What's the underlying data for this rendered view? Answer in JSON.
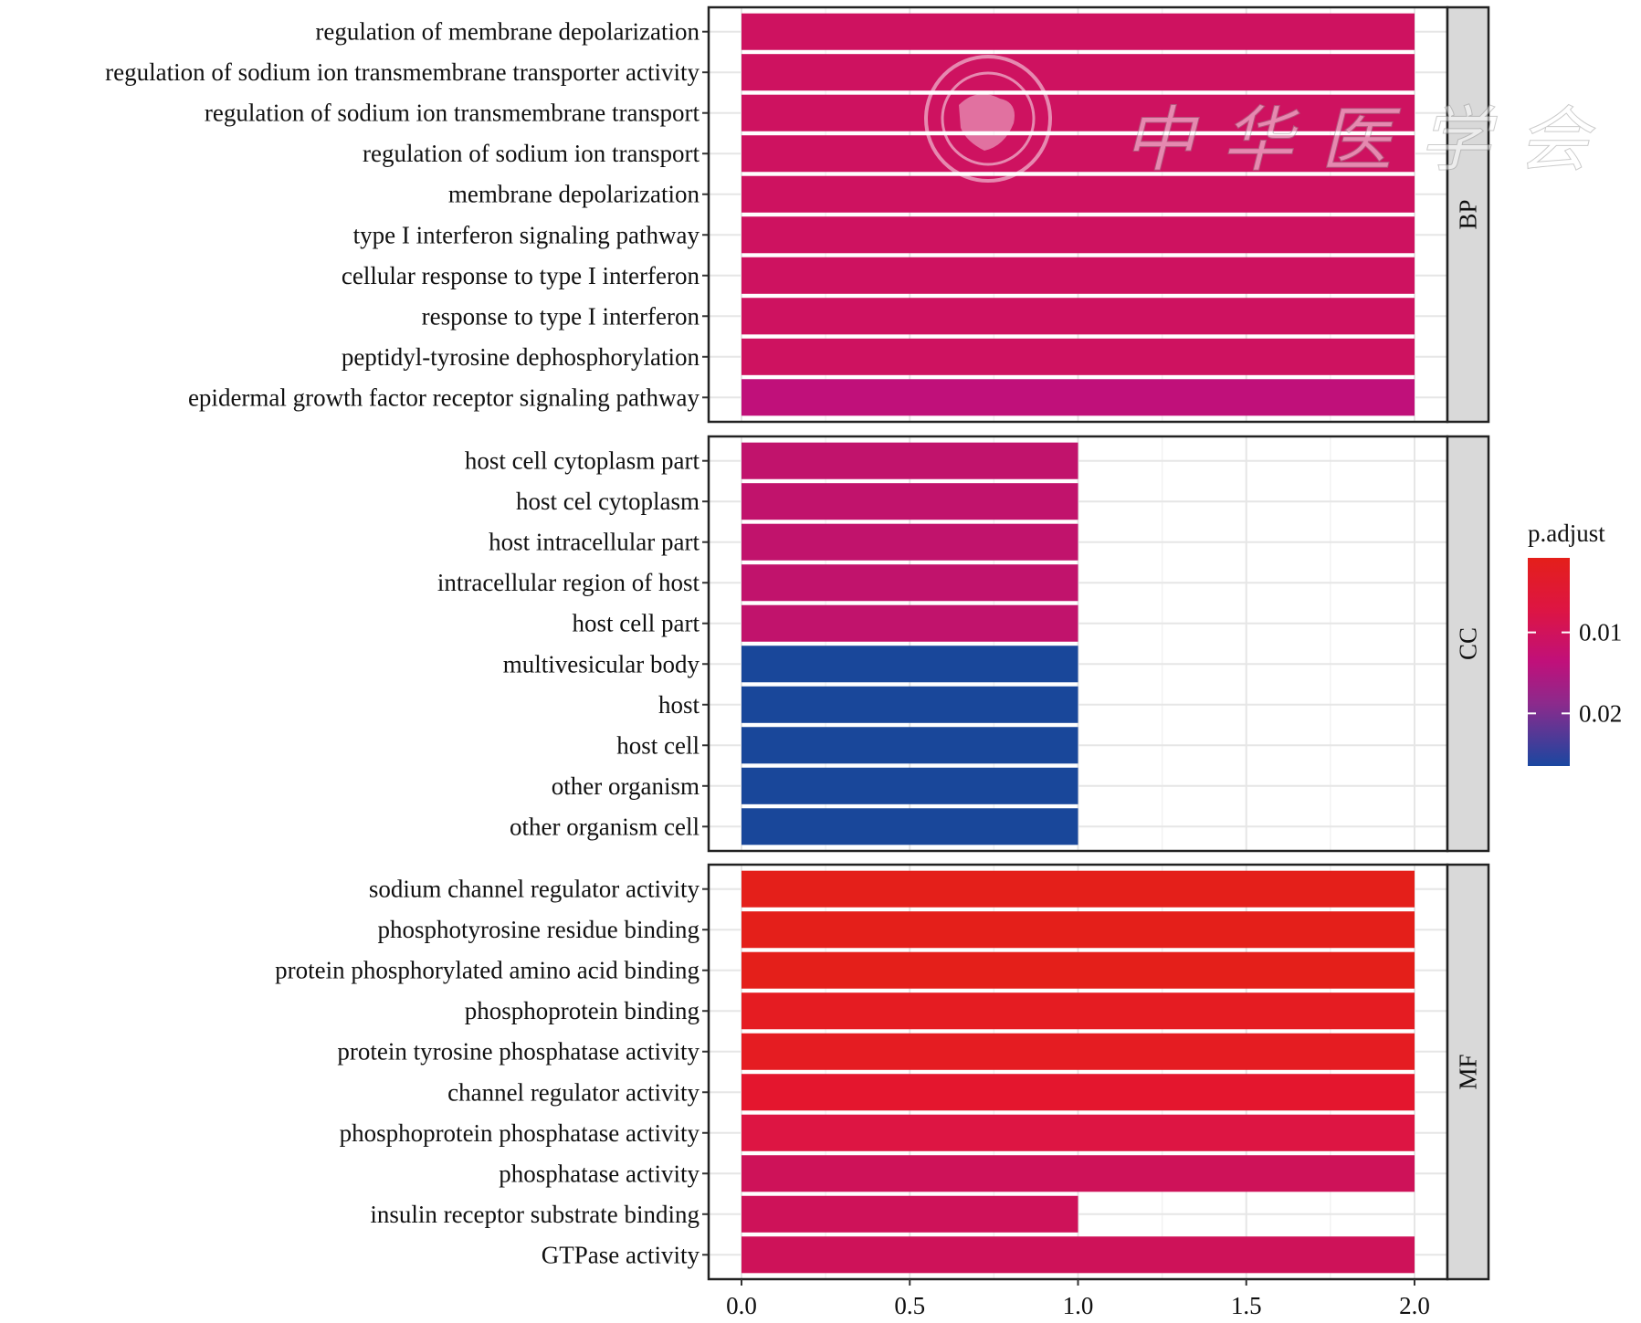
{
  "chart_data": {
    "type": "bar",
    "orientation": "horizontal",
    "facet_variable": "ONTOLOGY",
    "xlabel": "",
    "ylabel": "",
    "xlim": [
      0,
      2.1
    ],
    "x_ticks": [
      0.0,
      0.5,
      1.0,
      1.5,
      2.0
    ],
    "x_tick_labels": [
      "0.0",
      "0.5",
      "1.0",
      "1.5",
      "2.0"
    ],
    "grid": true,
    "legend": {
      "title": "p.adjust",
      "placement": "right",
      "type": "colorbar",
      "range": [
        0.0008,
        0.0265
      ],
      "ticks": [
        0.01,
        0.02
      ],
      "tick_labels": [
        "0.01",
        "0.02"
      ],
      "low_color": "#E41A1C",
      "mid_color": "#C0107A",
      "high_color": "#1A47A0"
    },
    "panels": [
      {
        "name": "BP",
        "strip_label": "BP",
        "categories": [
          "regulation of membrane depolarization",
          "regulation of sodium ion transmembrane transporter activity",
          "regulation of sodium ion transmembrane transport",
          "regulation of sodium ion transport",
          "membrane depolarization",
          "type I interferon signaling pathway",
          "cellular response to type I interferon",
          "response to type I interferon",
          "peptidyl-tyrosine dephosphorylation",
          "epidermal growth factor receptor signaling pathway"
        ],
        "values": [
          2,
          2,
          2,
          2,
          2,
          2,
          2,
          2,
          2,
          2
        ],
        "p_adjust": [
          0.0105,
          0.0105,
          0.0105,
          0.0105,
          0.0105,
          0.0105,
          0.0105,
          0.0105,
          0.0105,
          0.013
        ],
        "colors": [
          "#CE1260",
          "#CE1260",
          "#CE1260",
          "#CE1260",
          "#CE1260",
          "#CE1260",
          "#CE1260",
          "#CE1260",
          "#CE1260",
          "#C0107A"
        ]
      },
      {
        "name": "CC",
        "strip_label": "CC",
        "categories": [
          "host cell cytoplasm part",
          "host cel cytoplasm",
          "host intracellular part",
          "intracellular region of host",
          "host cell part",
          "multivesicular body",
          "host",
          "host cell",
          "other organism",
          "other organism cell"
        ],
        "values": [
          1,
          1,
          1,
          1,
          1,
          1,
          1,
          1,
          1,
          1
        ],
        "p_adjust": [
          0.0125,
          0.0125,
          0.0125,
          0.0125,
          0.0125,
          0.026,
          0.026,
          0.026,
          0.026,
          0.026
        ],
        "colors": [
          "#C1136C",
          "#C1136C",
          "#C1136C",
          "#C1136C",
          "#C1136C",
          "#19479A",
          "#19479A",
          "#19479A",
          "#19479A",
          "#19479A"
        ]
      },
      {
        "name": "MF",
        "strip_label": "MF",
        "categories": [
          "sodium channel regulator activity",
          "phosphotyrosine residue binding",
          "protein phosphorylated amino acid binding",
          "phosphoprotein binding",
          "protein tyrosine phosphatase activity",
          "channel regulator activity",
          "phosphoprotein phosphatase activity",
          "phosphatase activity",
          "insulin receptor substrate binding",
          "GTPase activity"
        ],
        "values": [
          2,
          2,
          2,
          2,
          2,
          2,
          2,
          2,
          1,
          2
        ],
        "p_adjust": [
          0.001,
          0.001,
          0.001,
          0.002,
          0.002,
          0.003,
          0.005,
          0.0105,
          0.0105,
          0.0105
        ],
        "colors": [
          "#E41F1A",
          "#E41F1A",
          "#E41F1A",
          "#E51C22",
          "#E51C22",
          "#E4162E",
          "#DD1543",
          "#CE1259",
          "#CE1259",
          "#CE1259"
        ]
      }
    ]
  },
  "watermark": {
    "text": "中华医学会",
    "seal_label": "Chinese Medical Association"
  }
}
